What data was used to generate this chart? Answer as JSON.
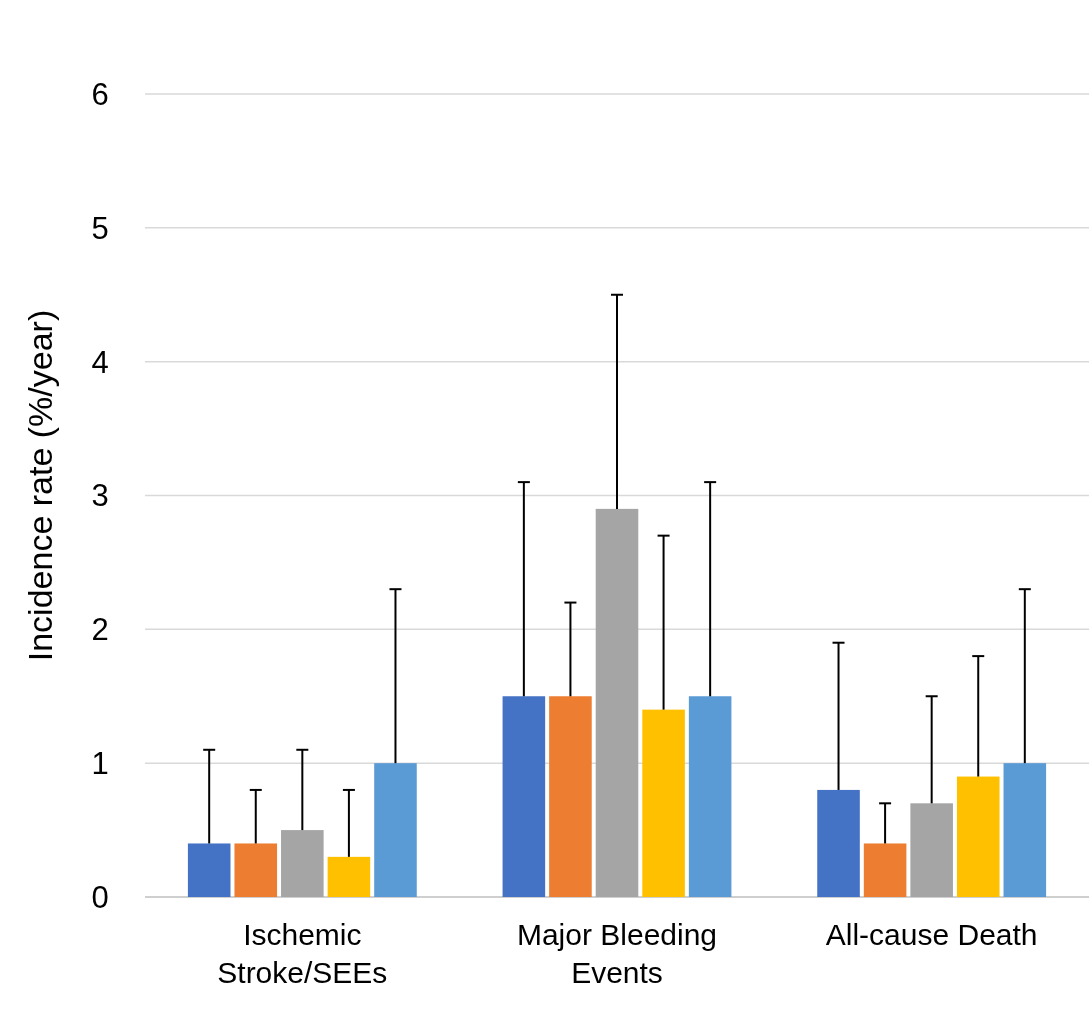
{
  "chart_data": {
    "type": "bar",
    "ylabel": "Incidence rate  (%/year)",
    "categories": [
      "Ischemic Stroke/SEEs",
      "Major Bleeding Events",
      "All-cause Death"
    ],
    "series": [
      {
        "color": "#4472c4",
        "values": [
          0.4,
          1.5,
          0.8
        ],
        "errors": [
          [
            0.4,
            1.1
          ],
          [
            1.5,
            3.1
          ],
          [
            0.8,
            1.9
          ]
        ]
      },
      {
        "color": "#ed7d31",
        "values": [
          0.4,
          1.5,
          0.4
        ],
        "errors": [
          [
            0.4,
            0.8
          ],
          [
            1.5,
            2.2
          ],
          [
            0.4,
            0.7
          ]
        ]
      },
      {
        "color": "#a5a5a5",
        "values": [
          0.5,
          2.9,
          0.7
        ],
        "errors": [
          [
            0.5,
            1.1
          ],
          [
            2.9,
            4.5
          ],
          [
            0.7,
            1.5
          ]
        ]
      },
      {
        "color": "#ffc000",
        "values": [
          0.3,
          1.4,
          0.9
        ],
        "errors": [
          [
            0.3,
            0.8
          ],
          [
            1.4,
            2.7
          ],
          [
            0.9,
            1.8
          ]
        ]
      },
      {
        "color": "#5b9bd5",
        "values": [
          1.0,
          1.5,
          1.0
        ],
        "errors": [
          [
            1.0,
            2.3
          ],
          [
            1.5,
            3.1
          ],
          [
            1.0,
            2.3
          ]
        ]
      }
    ],
    "ylim": [
      0,
      6
    ],
    "yticks": [
      0,
      1,
      2,
      3,
      4,
      5,
      6
    ],
    "grid": "y"
  }
}
